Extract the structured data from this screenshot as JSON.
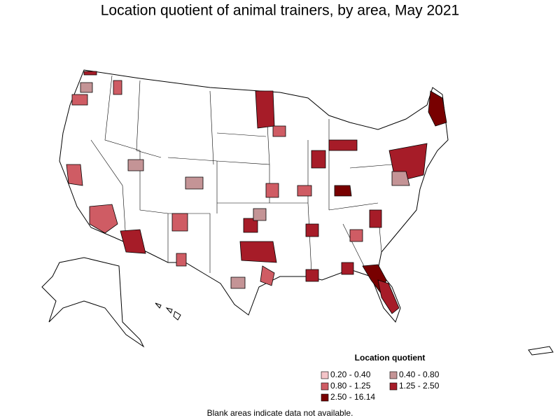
{
  "title": "Location quotient of animal trainers, by area, May 2021",
  "legend": {
    "title": "Location quotient",
    "items": [
      {
        "label": "0.20 - 0.40",
        "color": "#f4c4c8"
      },
      {
        "label": "0.40 - 0.80",
        "color": "#c49496"
      },
      {
        "label": "0.80 - 1.25",
        "color": "#cf5c64"
      },
      {
        "label": "1.25 - 2.50",
        "color": "#a61c28"
      },
      {
        "label": "2.50 - 16.14",
        "color": "#780000"
      }
    ]
  },
  "note": "Blank areas indicate data not available."
}
